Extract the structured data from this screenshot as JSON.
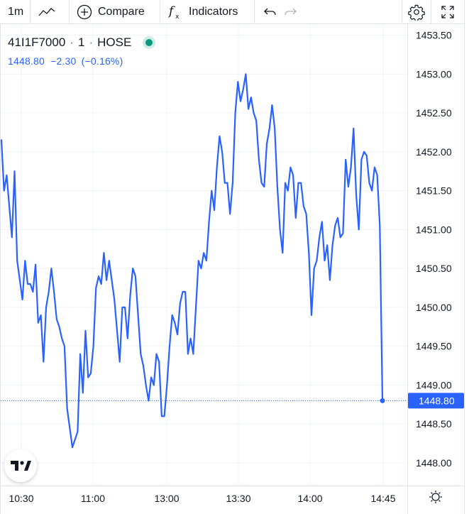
{
  "toolbar": {
    "interval": "1m",
    "compare_label": "Compare",
    "indicators_label": "Indicators",
    "icons": [
      "line-chart-style-icon",
      "plus-circle-icon",
      "fx-icon",
      "undo-icon",
      "redo-icon",
      "settings-icon",
      "fullscreen-icon"
    ]
  },
  "legend": {
    "symbol": "41I1F7000",
    "interval": "1",
    "exchange": "HOSE",
    "sep": "·",
    "last": "1448.80",
    "change": "−2.30",
    "change_pct": "(−0.16%)"
  },
  "colors": {
    "line": "#2962ff",
    "status_dot": "#089981",
    "grid": "#f0f3fa"
  },
  "chart_data": {
    "type": "line",
    "series": [
      {
        "values": [
          1452.15,
          1451.5,
          1451.7,
          1451.3,
          1450.9,
          1451.75,
          1450.6,
          1450.35,
          1450.1,
          1450.6,
          1450.3,
          1450.3,
          1450.2,
          1450.55,
          1449.8,
          1449.9,
          1449.3,
          1450.0,
          1450.2,
          1450.5,
          1450.2,
          1449.85,
          1449.75,
          1449.6,
          1449.5,
          1448.7,
          1448.45,
          1448.2,
          1448.3,
          1448.4,
          1449.4,
          1448.9,
          1449.7,
          1449.1,
          1449.15,
          1449.5,
          1450.25,
          1450.4,
          1450.3,
          1450.7,
          1450.35,
          1450.6,
          1450.35,
          1450.1,
          1449.7,
          1449.3,
          1450.0,
          1450.0,
          1449.6,
          1450.15,
          1450.5,
          1450.4,
          1449.9,
          1449.4,
          1449.25,
          1449.0,
          1448.8,
          1449.1,
          1449.0,
          1449.4,
          1449.3,
          1448.6,
          1448.6,
          1449.0,
          1449.5,
          1449.9,
          1449.8,
          1449.65,
          1450.05,
          1450.2,
          1450.2,
          1449.4,
          1449.6,
          1449.4,
          1450.0,
          1450.6,
          1450.5,
          1450.7,
          1450.6,
          1451.1,
          1451.5,
          1451.25,
          1451.8,
          1452.2,
          1452.0,
          1451.6,
          1451.6,
          1451.2,
          1451.6,
          1452.5,
          1452.9,
          1452.65,
          1452.8,
          1453.0,
          1452.55,
          1452.7,
          1452.5,
          1452.4,
          1451.9,
          1451.6,
          1451.55,
          1452.1,
          1452.3,
          1452.6,
          1452.3,
          1451.55,
          1451.0,
          1450.7,
          1451.6,
          1451.5,
          1451.8,
          1451.7,
          1451.15,
          1451.6,
          1451.6,
          1451.3,
          1451.2,
          1450.7,
          1449.9,
          1450.5,
          1450.6,
          1450.9,
          1451.1,
          1450.6,
          1450.8,
          1450.35,
          1450.8,
          1451.05,
          1451.15,
          1450.9,
          1450.95,
          1451.9,
          1451.55,
          1451.8,
          1452.3,
          1451.45,
          1451.0,
          1451.9,
          1452.0,
          1451.95,
          1451.6,
          1451.5,
          1451.8,
          1451.7,
          1451.05,
          1448.8
        ]
      }
    ],
    "x_ticks": [
      "10:30",
      "11:00",
      "13:00",
      "13:30",
      "14:00",
      "14:45"
    ],
    "y_ticks": [
      "1453.50",
      "1453.00",
      "1452.50",
      "1452.00",
      "1451.50",
      "1451.00",
      "1450.50",
      "1450.00",
      "1449.50",
      "1449.00",
      "1448.50",
      "1448.00"
    ],
    "last_value_label": "1448.80",
    "last_value": 1448.8,
    "ylim": [
      1447.6,
      1453.7
    ],
    "grid": true
  }
}
